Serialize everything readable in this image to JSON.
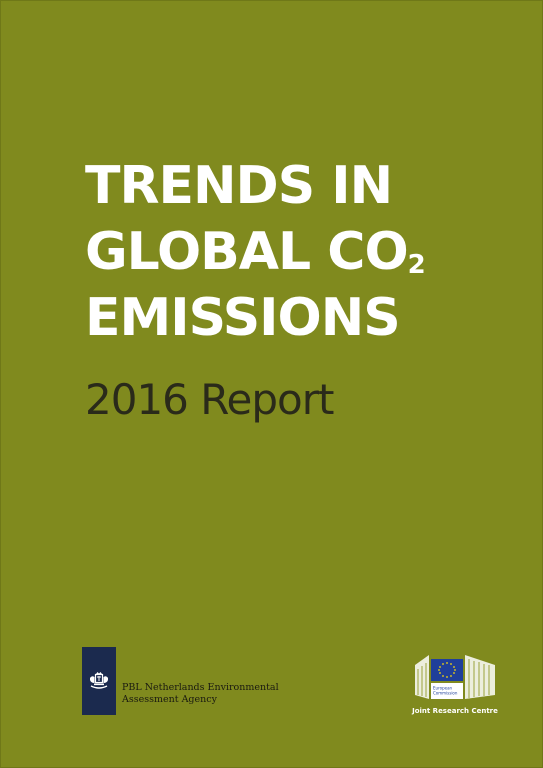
{
  "cover": {
    "background_color": "#808a1e",
    "title_lines": [
      "TRENDS IN",
      "GLOBAL CO",
      "EMISSIONS"
    ],
    "title_subscript": "2",
    "subtitle": "2016 Report"
  },
  "pbl": {
    "logo_icon": "netherlands-coat-of-arms-icon",
    "line1": "PBL Netherlands Environmental",
    "line2": "Assessment Agency"
  },
  "ec": {
    "logo_icon": "european-commission-logo-icon",
    "logo_text1": "European",
    "logo_text2": "Commission",
    "jrc_label": "Joint Research Centre"
  }
}
